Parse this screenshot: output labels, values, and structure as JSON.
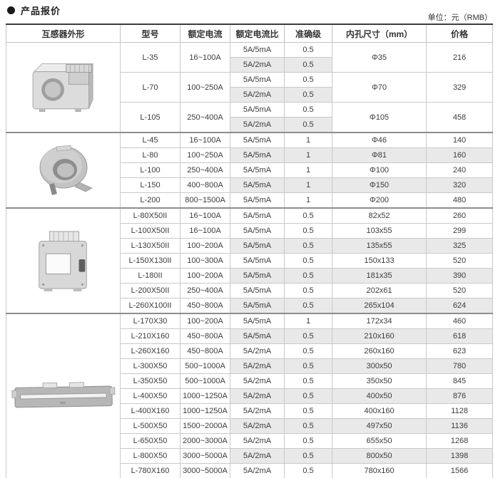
{
  "page": {
    "title": "产品报价",
    "unit_label": "单位：元（RMB）"
  },
  "colors": {
    "shaded_row": "#e9e9e9",
    "grid_line": "#c9c9c9",
    "section_divider": "#8d8d8d",
    "table_top_border": "#3c3c3c",
    "text": "#3a3a3a"
  },
  "table": {
    "headers": [
      "互感器外形",
      "型号",
      "额定电流",
      "额定电流比",
      "准确级",
      "内孔尺寸（mm）",
      "价格"
    ],
    "sections": [
      {
        "image": "box-ct",
        "models": [
          {
            "model": "L-35",
            "current": "16~100A",
            "hole": "Φ35",
            "price": "216",
            "variants": [
              {
                "ratio": "5A/5mA",
                "accuracy": "0.5",
                "shaded": false
              },
              {
                "ratio": "5A/2mA",
                "accuracy": "0.5",
                "shaded": true
              }
            ]
          },
          {
            "model": "L-70",
            "current": "100~250A",
            "hole": "Φ70",
            "price": "329",
            "variants": [
              {
                "ratio": "5A/5mA",
                "accuracy": "0.5",
                "shaded": false
              },
              {
                "ratio": "5A/2mA",
                "accuracy": "0.5",
                "shaded": true
              }
            ]
          },
          {
            "model": "L-105",
            "current": "250~400A",
            "hole": "Φ105",
            "price": "458",
            "variants": [
              {
                "ratio": "5A/5mA",
                "accuracy": "0.5",
                "shaded": false
              },
              {
                "ratio": "5A/2mA",
                "accuracy": "0.5",
                "shaded": true
              }
            ]
          }
        ]
      },
      {
        "image": "ring-ct",
        "rows": [
          {
            "model": "L-45",
            "current": "16~100A",
            "ratio": "5A/5mA",
            "accuracy": "1",
            "hole": "Φ46",
            "price": "140",
            "shaded": false
          },
          {
            "model": "L-80",
            "current": "100~250A",
            "ratio": "5A/5mA",
            "accuracy": "1",
            "hole": "Φ81",
            "price": "160",
            "shaded": true
          },
          {
            "model": "L-100",
            "current": "250~400A",
            "ratio": "5A/5mA",
            "accuracy": "1",
            "hole": "Φ100",
            "price": "240",
            "shaded": false
          },
          {
            "model": "L-150",
            "current": "400~800A",
            "ratio": "5A/5mA",
            "accuracy": "1",
            "hole": "Φ150",
            "price": "320",
            "shaded": true
          },
          {
            "model": "L-200",
            "current": "800~1500A",
            "ratio": "5A/5mA",
            "accuracy": "1",
            "hole": "Φ200",
            "price": "480",
            "shaded": false
          }
        ]
      },
      {
        "image": "square-ct",
        "rows": [
          {
            "model": "L-80X50II",
            "current": "16~100A",
            "ratio": "5A/5mA",
            "accuracy": "0.5",
            "hole": "82x52",
            "price": "260",
            "shaded": false
          },
          {
            "model": "L-100X50II",
            "current": "16~100A",
            "ratio": "5A/5mA",
            "accuracy": "0.5",
            "hole": "103x55",
            "price": "299",
            "shaded": false
          },
          {
            "model": "L-130X50II",
            "current": "100~200A",
            "ratio": "5A/5mA",
            "accuracy": "0.5",
            "hole": "135x55",
            "price": "325",
            "shaded": true
          },
          {
            "model": "L-150X130II",
            "current": "100~300A",
            "ratio": "5A/5mA",
            "accuracy": "0.5",
            "hole": "150x133",
            "price": "520",
            "shaded": false
          },
          {
            "model": "L-180II",
            "current": "100~200A",
            "ratio": "5A/5mA",
            "accuracy": "0.5",
            "hole": "181x35",
            "price": "390",
            "shaded": true
          },
          {
            "model": "L-200X50II",
            "current": "250~400A",
            "ratio": "5A/5mA",
            "accuracy": "0.5",
            "hole": "202x61",
            "price": "520",
            "shaded": false
          },
          {
            "model": "L-260X100II",
            "current": "450~800A",
            "ratio": "5A/5mA",
            "accuracy": "0.5",
            "hole": "265x104",
            "price": "624",
            "shaded": true
          }
        ]
      },
      {
        "image": "bar-ct",
        "rows": [
          {
            "model": "L-170X30",
            "current": "100~200A",
            "ratio": "5A/5mA",
            "accuracy": "1",
            "hole": "172x34",
            "price": "460",
            "shaded": false
          },
          {
            "model": "L-210X160",
            "current": "450~800A",
            "ratio": "5A/5mA",
            "accuracy": "0.5",
            "hole": "210x160",
            "price": "618",
            "shaded": true
          },
          {
            "model": "L-260X160",
            "current": "450~800A",
            "ratio": "5A/2mA",
            "accuracy": "0.5",
            "hole": "260x160",
            "price": "623",
            "shaded": false
          },
          {
            "model": "L-300X50",
            "current": "500~1000A",
            "ratio": "5A/2mA",
            "accuracy": "0.5",
            "hole": "300x50",
            "price": "780",
            "shaded": true
          },
          {
            "model": "L-350X50",
            "current": "500~1000A",
            "ratio": "5A/2mA",
            "accuracy": "0.5",
            "hole": "350x50",
            "price": "845",
            "shaded": false
          },
          {
            "model": "L-400X50",
            "current": "1000~1250A",
            "ratio": "5A/2mA",
            "accuracy": "0.5",
            "hole": "400x50",
            "price": "876",
            "shaded": true
          },
          {
            "model": "L-400X160",
            "current": "1000~1250A",
            "ratio": "5A/2mA",
            "accuracy": "0.5",
            "hole": "400x160",
            "price": "1128",
            "shaded": false
          },
          {
            "model": "L-500X50",
            "current": "1500~2000A",
            "ratio": "5A/2mA",
            "accuracy": "0.5",
            "hole": "497x50",
            "price": "1136",
            "shaded": true
          },
          {
            "model": "L-650X50",
            "current": "2000~3000A",
            "ratio": "5A/2mA",
            "accuracy": "0.5",
            "hole": "655x50",
            "price": "1268",
            "shaded": false
          },
          {
            "model": "L-800X50",
            "current": "3000~5000A",
            "ratio": "5A/2mA",
            "accuracy": "0.5",
            "hole": "800x50",
            "price": "1398",
            "shaded": true
          },
          {
            "model": "L-780X160",
            "current": "3000~5000A",
            "ratio": "5A/2mA",
            "accuracy": "0.5",
            "hole": "780x160",
            "price": "1566",
            "shaded": false
          }
        ]
      }
    ]
  }
}
